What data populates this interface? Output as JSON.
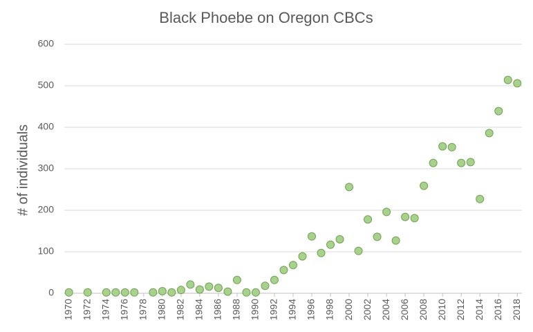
{
  "chart_data": {
    "type": "scatter",
    "title": "Black Phoebe on Oregon CBCs",
    "y_label": "# of individuals",
    "x": [
      1970,
      1972,
      1974,
      1975,
      1976,
      1977,
      1979,
      1980,
      1981,
      1982,
      1983,
      1984,
      1985,
      1986,
      1987,
      1988,
      1989,
      1990,
      1991,
      1992,
      1993,
      1994,
      1995,
      1996,
      1997,
      1998,
      1999,
      2000,
      2001,
      2002,
      2003,
      2004,
      2005,
      2006,
      2007,
      2008,
      2009,
      2010,
      2011,
      2012,
      2013,
      2014,
      2015,
      2016,
      2017,
      2018
    ],
    "values": [
      2,
      2,
      2,
      2,
      2,
      2,
      2,
      5,
      2,
      8,
      21,
      9,
      16,
      13,
      4,
      32,
      2,
      2,
      18,
      32,
      56,
      68,
      89,
      137,
      97,
      117,
      130,
      256,
      102,
      178,
      136,
      196,
      127,
      184,
      181,
      259,
      314,
      354,
      352,
      314,
      316,
      227,
      386,
      439,
      514,
      506
    ],
    "color": "#a9d18e",
    "edge_color": "#70a150",
    "xlim": [
      1969.5,
      2018.5
    ],
    "xticks": [
      1970,
      1972,
      1974,
      1976,
      1978,
      1980,
      1982,
      1984,
      1986,
      1988,
      1990,
      1992,
      1994,
      1996,
      1998,
      2000,
      2002,
      2004,
      2006,
      2008,
      2010,
      2012,
      2014,
      2016,
      2018
    ],
    "ylim": [
      0,
      600
    ],
    "yticks": [
      0,
      100,
      200,
      300,
      400,
      500,
      600
    ],
    "grid": true
  }
}
